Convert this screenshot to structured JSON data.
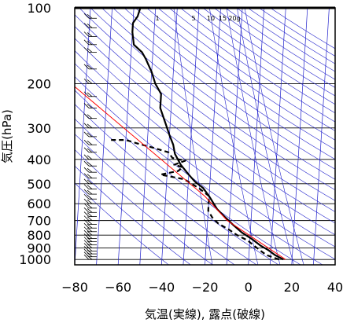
{
  "chart_data": {
    "type": "line",
    "xlabel": "気温(実線), 露点(破線)",
    "ylabel": "気圧(hPa)",
    "xlim": [
      -80,
      40
    ],
    "ylim": [
      1050,
      100
    ],
    "y_scale": "log",
    "x_ticks": [
      "−80",
      "−60",
      "−40",
      "−20",
      "0",
      "20",
      "40"
    ],
    "x_tick_values": [
      -80,
      -60,
      -40,
      -20,
      0,
      20,
      40
    ],
    "y_ticks": [
      "100",
      "200",
      "300",
      "400",
      "500",
      "600",
      "700",
      "800",
      "900",
      "1000"
    ],
    "y_tick_values": [
      100,
      200,
      300,
      400,
      500,
      600,
      700,
      800,
      900,
      1000
    ],
    "mixing_ratio_labels": [
      "1",
      "5",
      "10",
      "15",
      "20g"
    ],
    "series": [
      {
        "style": "solid-thick",
        "color": "#000000",
        "points": [
          [
            16,
            1000
          ],
          [
            12,
            960
          ],
          [
            9,
            920
          ],
          [
            5,
            880
          ],
          [
            1,
            830
          ],
          [
            -4,
            780
          ],
          [
            -8,
            730
          ],
          [
            -12,
            680
          ],
          [
            -16,
            630
          ],
          [
            -20,
            560
          ],
          [
            -23,
            520
          ],
          [
            -27,
            490
          ],
          [
            -30,
            460
          ],
          [
            -34,
            420
          ],
          [
            -37,
            380
          ],
          [
            -38,
            350
          ],
          [
            -40,
            320
          ],
          [
            -42,
            290
          ],
          [
            -45,
            250
          ],
          [
            -45,
            220
          ],
          [
            -48,
            200
          ],
          [
            -50,
            180
          ],
          [
            -53,
            160
          ],
          [
            -55,
            150
          ],
          [
            -59,
            140
          ],
          [
            -60,
            125
          ],
          [
            -60,
            115
          ],
          [
            -58,
            108
          ],
          [
            -57,
            100
          ]
        ]
      },
      {
        "style": "dashed-thick",
        "color": "#000000",
        "points": [
          [
            14,
            1000
          ],
          [
            8,
            960
          ],
          [
            5,
            920
          ],
          [
            2,
            880
          ],
          [
            -1,
            840
          ],
          [
            -6,
            800
          ],
          [
            -10,
            760
          ],
          [
            -15,
            720
          ],
          [
            -18,
            680
          ],
          [
            -20,
            640
          ],
          [
            -20,
            560
          ],
          [
            -25,
            520
          ],
          [
            -32,
            480
          ],
          [
            -43,
            460
          ],
          [
            -35,
            445
          ],
          [
            -33,
            430
          ],
          [
            -37,
            420
          ],
          [
            -32,
            405
          ],
          [
            -38,
            395
          ],
          [
            -40,
            375
          ],
          [
            -47,
            360
          ],
          [
            -55,
            345
          ],
          [
            -60,
            335
          ],
          [
            -68,
            335
          ]
        ]
      },
      {
        "style": "thin",
        "color": "#ff0000",
        "points": [
          [
            17,
            1000
          ],
          [
            -11,
            700
          ],
          [
            -22,
            560
          ],
          [
            -90,
            190
          ]
        ]
      }
    ],
    "wind_barbs": [
      {
        "p": 1000
      },
      {
        "p": 975
      },
      {
        "p": 950
      },
      {
        "p": 925
      },
      {
        "p": 900
      },
      {
        "p": 875
      },
      {
        "p": 850
      },
      {
        "p": 825
      },
      {
        "p": 800
      },
      {
        "p": 775
      },
      {
        "p": 750
      },
      {
        "p": 725
      },
      {
        "p": 700
      },
      {
        "p": 675
      },
      {
        "p": 650
      },
      {
        "p": 625
      },
      {
        "p": 600
      },
      {
        "p": 575
      },
      {
        "p": 550
      },
      {
        "p": 525
      },
      {
        "p": 500
      },
      {
        "p": 475
      },
      {
        "p": 450
      },
      {
        "p": 425
      },
      {
        "p": 400
      },
      {
        "p": 375
      },
      {
        "p": 350
      },
      {
        "p": 325
      },
      {
        "p": 300
      },
      {
        "p": 275
      },
      {
        "p": 250
      },
      {
        "p": 225
      },
      {
        "p": 200
      },
      {
        "p": 175
      },
      {
        "p": 150
      },
      {
        "p": 140
      },
      {
        "p": 130
      },
      {
        "p": 120
      },
      {
        "p": 110
      },
      {
        "p": 100
      }
    ],
    "colors": {
      "grid": "#000000",
      "isotherm": "#2222cc",
      "adiabat": "#2222cc",
      "mixing_ratio": "#2222cc",
      "parcel": "#ff0000"
    }
  }
}
